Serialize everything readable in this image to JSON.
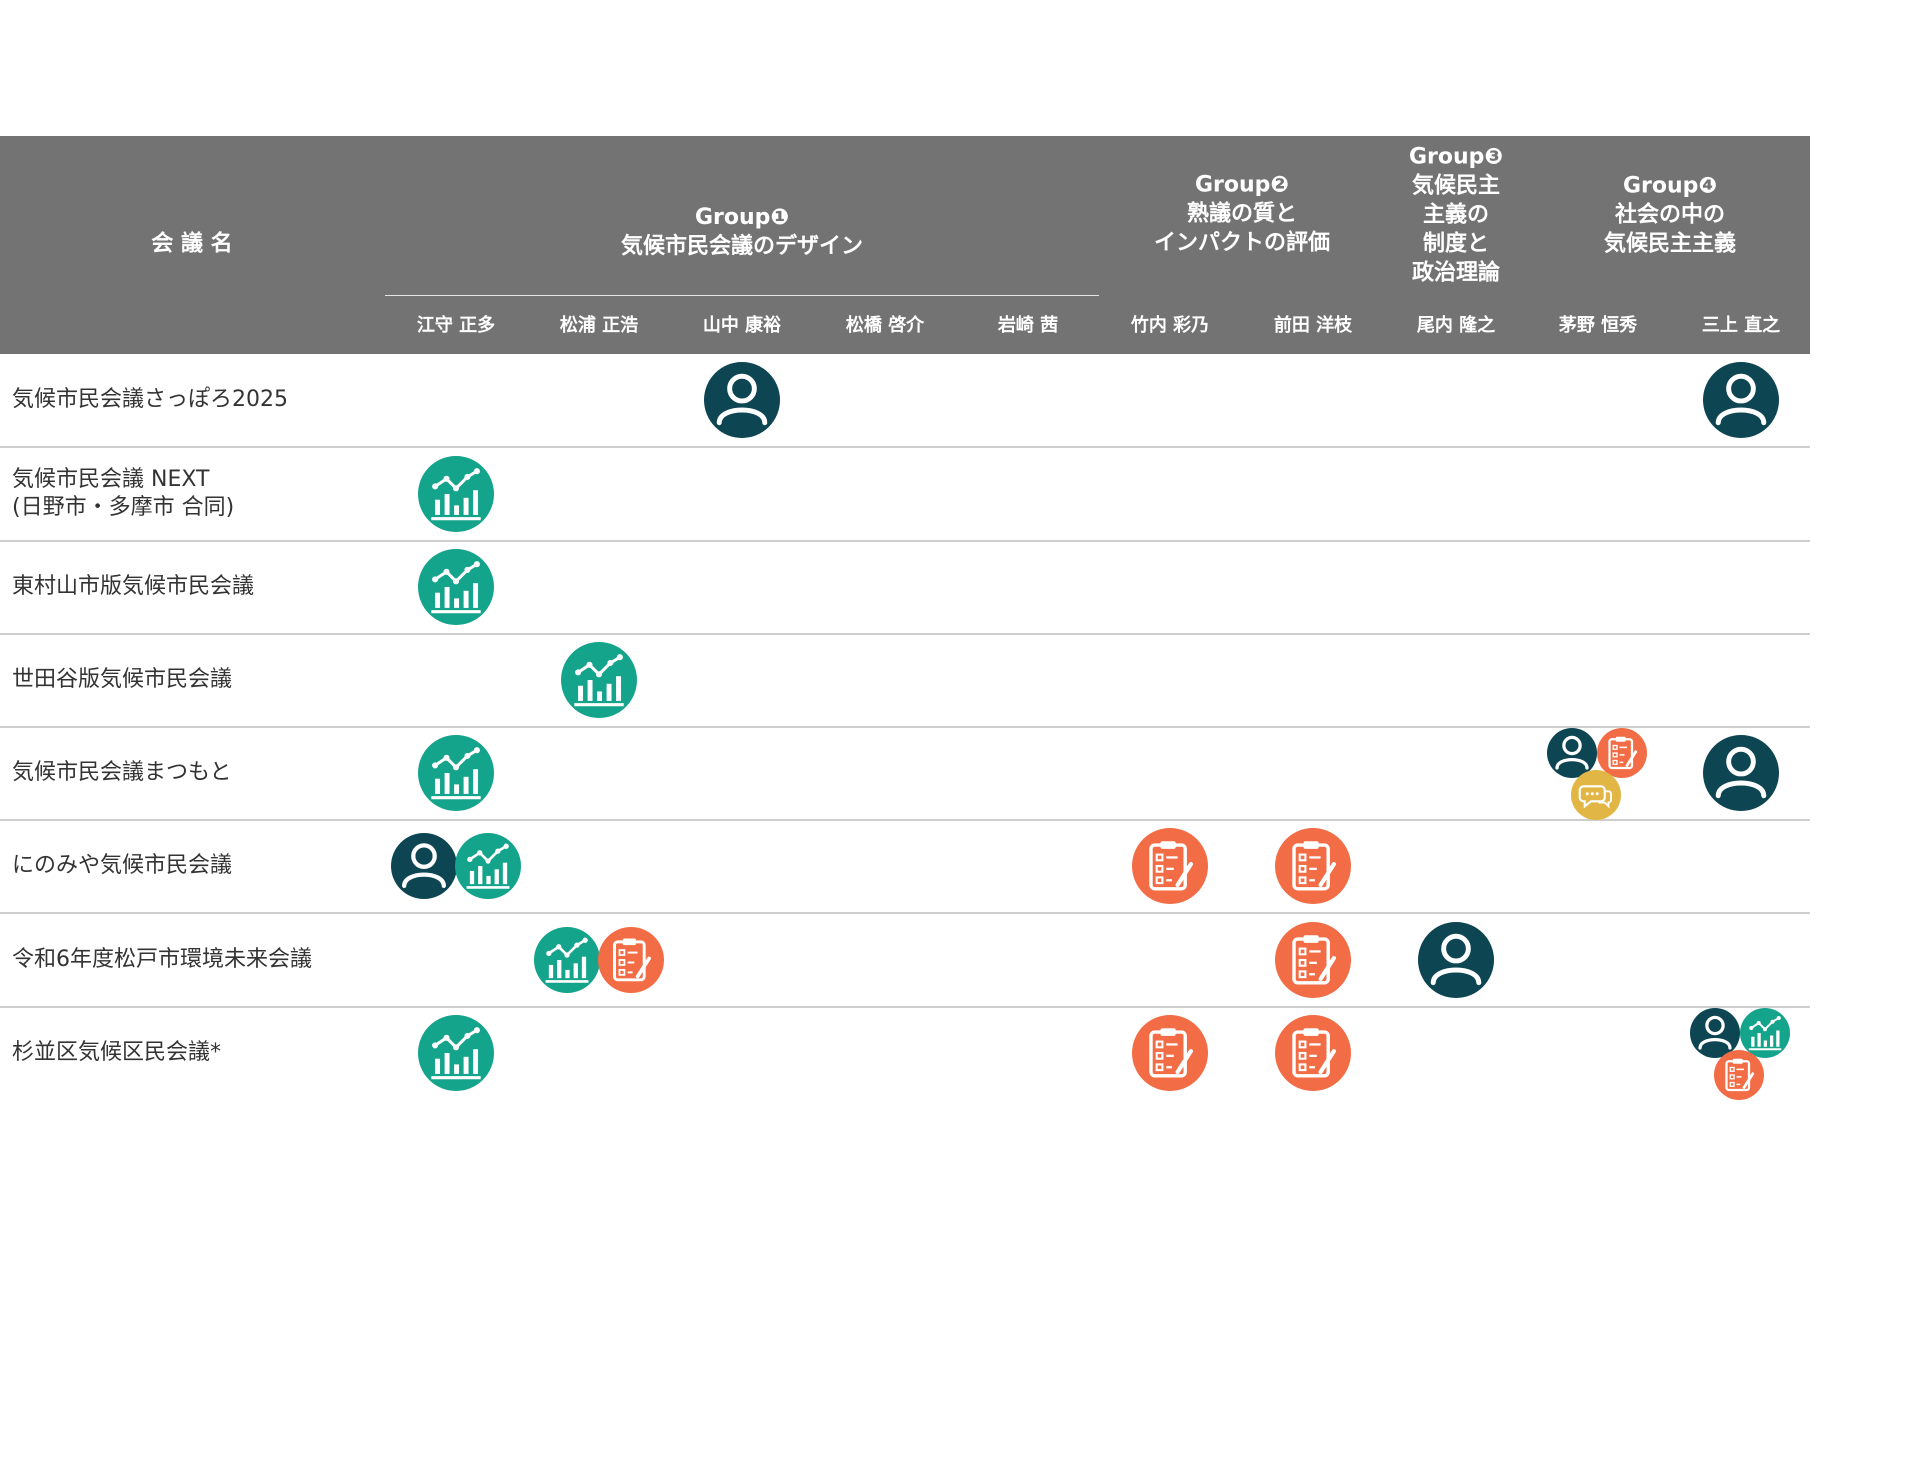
{
  "header": {
    "conference_label": "会 議 名",
    "groups": [
      {
        "title": "Group❶\n気候市民会議のデザイン",
        "members": [
          "江守 正多",
          "松浦 正浩",
          "山中 康裕",
          "松橋 啓介",
          "岩崎 茜"
        ]
      },
      {
        "title": "Group❷\n熟議の質と\nインパクトの評価",
        "members": [
          "竹内 彩乃",
          "前田 洋枝"
        ]
      },
      {
        "title": "Group❸\n気候民主\n主義の\n制度と\n政治理論",
        "members": [
          "尾内 隆之"
        ]
      },
      {
        "title": "Group❹\n社会の中の\n気候民主主義",
        "members": [
          "茅野 恒秀",
          "三上 直之"
        ]
      }
    ]
  },
  "icon_types": {
    "person": {
      "icon": "person-icon",
      "color": "#0d4552"
    },
    "chart": {
      "icon": "chart-icon",
      "color": "#14a38b"
    },
    "clipboard": {
      "icon": "clipboard-icon",
      "color": "#f26d45"
    },
    "chat": {
      "icon": "chat-icon",
      "color": "#e2b644"
    }
  },
  "conferences": [
    {
      "name": "気候市民会議さっぽろ2025",
      "cells": [
        [],
        [],
        [
          "person"
        ],
        [],
        [],
        [],
        [],
        [],
        [],
        [
          "person"
        ]
      ]
    },
    {
      "name": "気候市民会議 NEXT\n(日野市・多摩市 合同)",
      "cells": [
        [
          "chart"
        ],
        [],
        [],
        [],
        [],
        [],
        [],
        [],
        [],
        []
      ]
    },
    {
      "name": "東村山市版気候市民会議",
      "cells": [
        [
          "chart"
        ],
        [],
        [],
        [],
        [],
        [],
        [],
        [],
        [],
        []
      ]
    },
    {
      "name": "世田谷版気候市民会議",
      "cells": [
        [],
        [
          "chart"
        ],
        [],
        [],
        [],
        [],
        [],
        [],
        [],
        []
      ]
    },
    {
      "name": "気候市民会議まつもと",
      "cells": [
        [
          "chart"
        ],
        [],
        [],
        [],
        [],
        [],
        [],
        [],
        [
          "person",
          "clipboard",
          "chat"
        ],
        [
          "person"
        ]
      ]
    },
    {
      "name": "にのみや気候市民会議",
      "cells": [
        [
          "person",
          "chart"
        ],
        [],
        [],
        [],
        [],
        [
          "clipboard"
        ],
        [
          "clipboard"
        ],
        [],
        [],
        []
      ]
    },
    {
      "name": "令和6年度松戸市環境未来会議",
      "cells": [
        [],
        [
          "chart",
          "clipboard"
        ],
        [],
        [],
        [],
        [],
        [
          "clipboard"
        ],
        [
          "person"
        ],
        [],
        []
      ]
    },
    {
      "name": "杉並区気候区民会議*",
      "cells": [
        [
          "chart"
        ],
        [],
        [],
        [],
        [],
        [
          "clipboard"
        ],
        [
          "clipboard"
        ],
        [],
        [],
        [
          "person",
          "chart",
          "clipboard"
        ]
      ]
    }
  ]
}
